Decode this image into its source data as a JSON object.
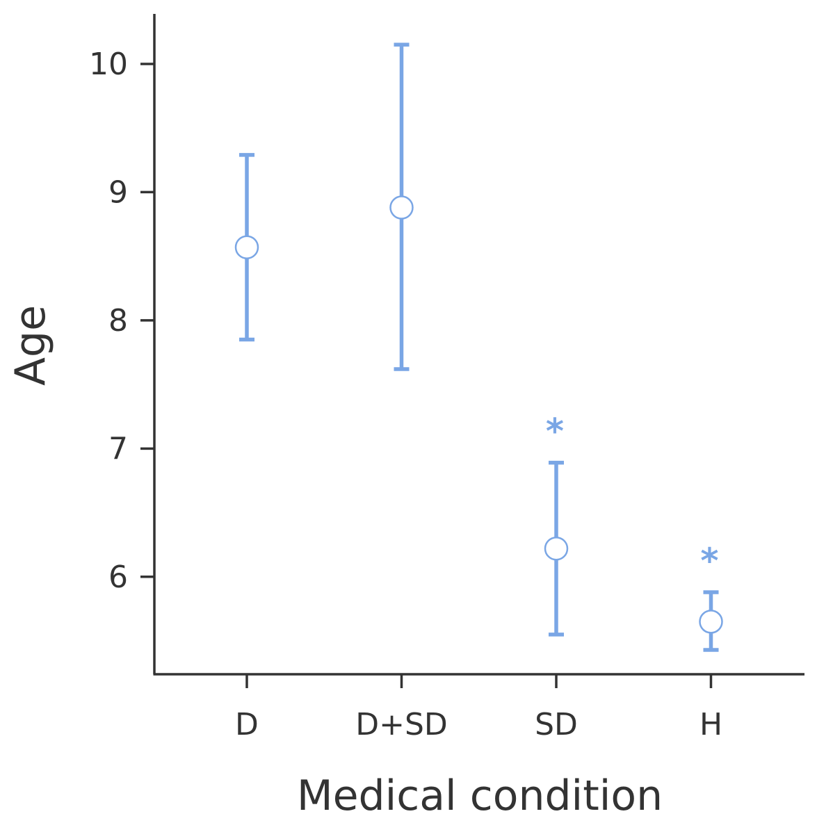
{
  "chart_data": {
    "type": "errorbar",
    "categories": [
      "D",
      "D+SD",
      "SD",
      "H"
    ],
    "points": [
      {
        "category": "D",
        "mean": 8.57,
        "lower": 7.85,
        "upper": 9.29,
        "annotation": ""
      },
      {
        "category": "D+SD",
        "mean": 8.88,
        "lower": 7.62,
        "upper": 10.15,
        "annotation": ""
      },
      {
        "category": "SD",
        "mean": 6.22,
        "lower": 5.55,
        "upper": 6.89,
        "annotation": "*"
      },
      {
        "category": "H",
        "mean": 5.65,
        "lower": 5.43,
        "upper": 5.88,
        "annotation": "*"
      }
    ],
    "xlabel": "Medical condition",
    "ylabel": "Age",
    "ylim": [
      5.24,
      10.39
    ],
    "yticks": [
      6,
      7,
      8,
      9,
      10
    ],
    "grid": false,
    "colors": {
      "series": "#7aa6e5",
      "axis": "#333333",
      "marker_fill": "#ffffff"
    }
  }
}
